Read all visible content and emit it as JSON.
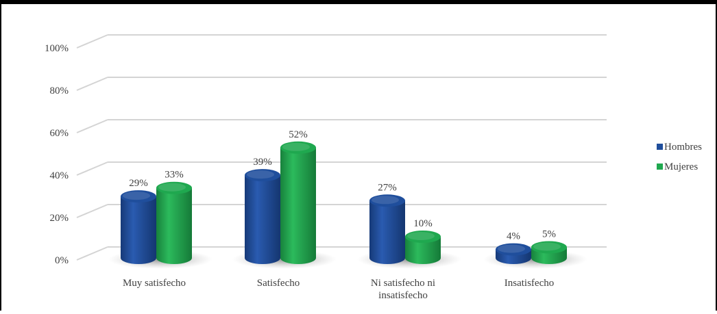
{
  "chart_data": {
    "type": "bar",
    "style": "3d-cylinder",
    "categories": [
      "Muy satisfecho",
      "Satisfecho",
      "Ni satisfecho ni insatisfecho",
      "Insatisfecho"
    ],
    "category_lines": [
      [
        "Muy satisfecho"
      ],
      [
        "Satisfecho"
      ],
      [
        "Ni satisfecho ni",
        "insatisfecho"
      ],
      [
        "Insatisfecho"
      ]
    ],
    "series": [
      {
        "name": "Hombres",
        "values": [
          29,
          39,
          27,
          4
        ],
        "labels": [
          "29%",
          "39%",
          "27%",
          "4%"
        ],
        "color": "#1f4e9c"
      },
      {
        "name": "Mujeres",
        "values": [
          33,
          52,
          10,
          5
        ],
        "labels": [
          "33%",
          "52%",
          "10%",
          "5%"
        ],
        "color": "#1fa84f"
      }
    ],
    "yticks": [
      {
        "value": 0,
        "label": "0%"
      },
      {
        "value": 20,
        "label": "20%"
      },
      {
        "value": 40,
        "label": "40%"
      },
      {
        "value": 60,
        "label": "60%"
      },
      {
        "value": 80,
        "label": "80%"
      },
      {
        "value": 100,
        "label": "100%"
      }
    ],
    "ylim": [
      0,
      100
    ],
    "grid": true,
    "legend_position": "right",
    "title": "",
    "xlabel": "",
    "ylabel": ""
  }
}
